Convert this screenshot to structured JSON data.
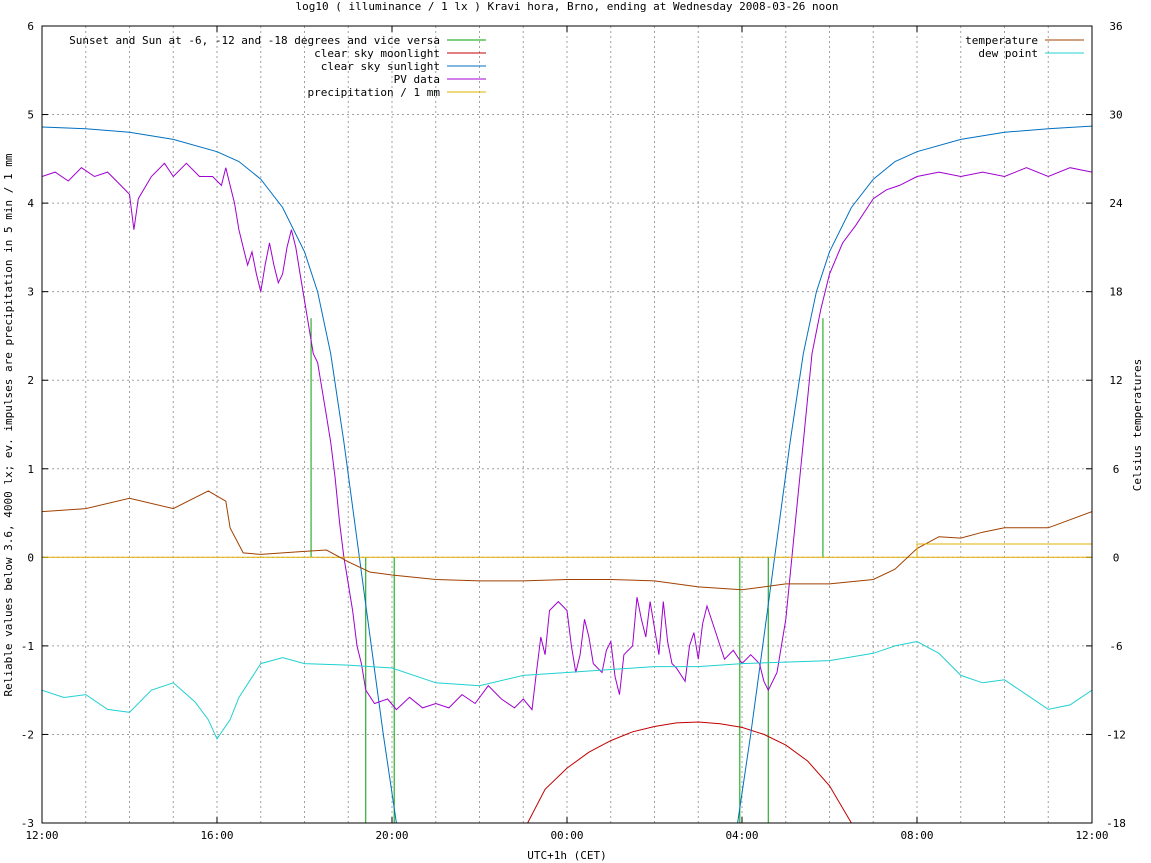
{
  "chart_data": {
    "type": "line",
    "title": "log10 ( illuminance / 1 lx ) Kravi hora, Brno, ending at Wednesday 2008-03-26 noon",
    "xlabel": "UTC+1h (CET)",
    "ylabel": "Reliable values below 3.6, 4000 lx; ev. impulses are precipitation in 5 min / 1 mm",
    "y2label": "Celsius temperatures",
    "x_unit": "hours since 12:00",
    "xlim": [
      0,
      24
    ],
    "ylim": [
      -3,
      6
    ],
    "y2lim": [
      -18,
      36
    ],
    "x_ticks": [
      {
        "v": 0,
        "label": "12:00"
      },
      {
        "v": 4,
        "label": "16:00"
      },
      {
        "v": 8,
        "label": "20:00"
      },
      {
        "v": 12,
        "label": "00:00"
      },
      {
        "v": 16,
        "label": "04:00"
      },
      {
        "v": 20,
        "label": "08:00"
      },
      {
        "v": 24,
        "label": "12:00"
      }
    ],
    "y_ticks": [
      {
        "v": -3,
        "label": "-3"
      },
      {
        "v": -2,
        "label": "-2"
      },
      {
        "v": -1,
        "label": "-1"
      },
      {
        "v": 0,
        "label": "0"
      },
      {
        "v": 1,
        "label": "1"
      },
      {
        "v": 2,
        "label": "2"
      },
      {
        "v": 3,
        "label": "3"
      },
      {
        "v": 4,
        "label": "4"
      },
      {
        "v": 5,
        "label": "5"
      },
      {
        "v": 6,
        "label": "6"
      }
    ],
    "y2_ticks": [
      {
        "v": -18,
        "label": "-18"
      },
      {
        "v": -12,
        "label": "-12"
      },
      {
        "v": -6,
        "label": "-6"
      },
      {
        "v": 0,
        "label": "0"
      },
      {
        "v": 6,
        "label": "6"
      },
      {
        "v": 12,
        "label": "12"
      },
      {
        "v": 18,
        "label": "18"
      },
      {
        "v": 24,
        "label": "24"
      },
      {
        "v": 30,
        "label": "30"
      },
      {
        "v": 36,
        "label": "36"
      }
    ],
    "grid": true,
    "legend_left_placement": "top-left",
    "legend_right_placement": "top-right",
    "series": [
      {
        "name": "Sunset and Sun at -6, -12 and -18 degrees and vice versa",
        "color": "#00a000",
        "axis": "y",
        "style": "impulses",
        "impulses": [
          {
            "x": 6.15,
            "from": 0.0,
            "to": 2.7
          },
          {
            "x": 7.4,
            "from": 0.0,
            "to": -3.0
          },
          {
            "x": 8.05,
            "from": 0.0,
            "to": -3.0
          },
          {
            "x": 15.95,
            "from": 0.0,
            "to": -3.0
          },
          {
            "x": 16.6,
            "from": 0.0,
            "to": -3.0
          },
          {
            "x": 17.85,
            "from": 0.0,
            "to": 2.7
          }
        ]
      },
      {
        "name": "clear sky moonlight",
        "color": "#c00000",
        "axis": "y",
        "points": [
          [
            11.1,
            -3.0
          ],
          [
            11.5,
            -2.62
          ],
          [
            12.0,
            -2.38
          ],
          [
            12.5,
            -2.2
          ],
          [
            13.0,
            -2.07
          ],
          [
            13.5,
            -1.97
          ],
          [
            14.0,
            -1.91
          ],
          [
            14.5,
            -1.87
          ],
          [
            15.0,
            -1.86
          ],
          [
            15.5,
            -1.88
          ],
          [
            16.0,
            -1.92
          ],
          [
            16.5,
            -2.0
          ],
          [
            17.0,
            -2.12
          ],
          [
            17.5,
            -2.3
          ],
          [
            18.0,
            -2.58
          ],
          [
            18.5,
            -3.0
          ]
        ]
      },
      {
        "name": "clear sky sunlight",
        "color": "#0070c0",
        "axis": "y",
        "points": [
          [
            0,
            4.86
          ],
          [
            1,
            4.84
          ],
          [
            2,
            4.8
          ],
          [
            3,
            4.72
          ],
          [
            4,
            4.58
          ],
          [
            4.5,
            4.47
          ],
          [
            5,
            4.27
          ],
          [
            5.5,
            3.95
          ],
          [
            6.0,
            3.45
          ],
          [
            6.3,
            3.0
          ],
          [
            6.6,
            2.3
          ],
          [
            6.9,
            1.3
          ],
          [
            7.2,
            0.2
          ],
          [
            7.5,
            -0.9
          ],
          [
            7.8,
            -2.0
          ],
          [
            8.1,
            -3.0
          ],
          [
            15.9,
            -3.0
          ],
          [
            16.2,
            -2.0
          ],
          [
            16.5,
            -0.9
          ],
          [
            16.8,
            0.2
          ],
          [
            17.1,
            1.3
          ],
          [
            17.4,
            2.3
          ],
          [
            17.7,
            3.0
          ],
          [
            18.0,
            3.45
          ],
          [
            18.5,
            3.95
          ],
          [
            19.0,
            4.27
          ],
          [
            19.5,
            4.47
          ],
          [
            20,
            4.58
          ],
          [
            21,
            4.72
          ],
          [
            22,
            4.8
          ],
          [
            23,
            4.84
          ],
          [
            24,
            4.87
          ]
        ]
      },
      {
        "name": "PV data",
        "color": "#a000d0",
        "axis": "y",
        "points": [
          [
            0,
            4.3
          ],
          [
            0.3,
            4.35
          ],
          [
            0.6,
            4.25
          ],
          [
            0.9,
            4.4
          ],
          [
            1.2,
            4.3
          ],
          [
            1.5,
            4.35
          ],
          [
            1.8,
            4.2
          ],
          [
            2.0,
            4.1
          ],
          [
            2.1,
            3.7
          ],
          [
            2.2,
            4.05
          ],
          [
            2.5,
            4.3
          ],
          [
            2.8,
            4.45
          ],
          [
            3.0,
            4.3
          ],
          [
            3.3,
            4.45
          ],
          [
            3.6,
            4.3
          ],
          [
            3.9,
            4.3
          ],
          [
            4.1,
            4.2
          ],
          [
            4.2,
            4.4
          ],
          [
            4.3,
            4.2
          ],
          [
            4.4,
            4.0
          ],
          [
            4.5,
            3.7
          ],
          [
            4.6,
            3.5
          ],
          [
            4.7,
            3.3
          ],
          [
            4.8,
            3.45
          ],
          [
            4.9,
            3.2
          ],
          [
            5.0,
            3.0
          ],
          [
            5.1,
            3.3
          ],
          [
            5.2,
            3.55
          ],
          [
            5.3,
            3.3
          ],
          [
            5.4,
            3.1
          ],
          [
            5.5,
            3.2
          ],
          [
            5.6,
            3.5
          ],
          [
            5.7,
            3.7
          ],
          [
            5.8,
            3.5
          ],
          [
            5.9,
            3.2
          ],
          [
            6.0,
            2.9
          ],
          [
            6.1,
            2.6
          ],
          [
            6.2,
            2.3
          ],
          [
            6.3,
            2.2
          ],
          [
            6.4,
            1.9
          ],
          [
            6.5,
            1.6
          ],
          [
            6.6,
            1.3
          ],
          [
            6.7,
            0.9
          ],
          [
            6.8,
            0.4
          ],
          [
            6.9,
            0.0
          ],
          [
            7.0,
            -0.3
          ],
          [
            7.1,
            -0.6
          ],
          [
            7.2,
            -1.0
          ],
          [
            7.3,
            -1.2
          ],
          [
            7.4,
            -1.5
          ],
          [
            7.6,
            -1.65
          ],
          [
            7.9,
            -1.6
          ],
          [
            8.1,
            -1.72
          ],
          [
            8.4,
            -1.58
          ],
          [
            8.7,
            -1.7
          ],
          [
            9.0,
            -1.65
          ],
          [
            9.3,
            -1.7
          ],
          [
            9.6,
            -1.55
          ],
          [
            9.9,
            -1.65
          ],
          [
            10.2,
            -1.45
          ],
          [
            10.5,
            -1.6
          ],
          [
            10.8,
            -1.7
          ],
          [
            11.0,
            -1.6
          ],
          [
            11.2,
            -1.72
          ],
          [
            11.3,
            -1.3
          ],
          [
            11.4,
            -0.9
          ],
          [
            11.5,
            -1.1
          ],
          [
            11.6,
            -0.6
          ],
          [
            11.8,
            -0.5
          ],
          [
            12.0,
            -0.6
          ],
          [
            12.1,
            -1.0
          ],
          [
            12.2,
            -1.3
          ],
          [
            12.3,
            -1.1
          ],
          [
            12.4,
            -0.7
          ],
          [
            12.5,
            -0.9
          ],
          [
            12.6,
            -1.2
          ],
          [
            12.8,
            -1.3
          ],
          [
            12.9,
            -1.05
          ],
          [
            13.0,
            -0.95
          ],
          [
            13.1,
            -1.35
          ],
          [
            13.2,
            -1.55
          ],
          [
            13.3,
            -1.1
          ],
          [
            13.5,
            -1.0
          ],
          [
            13.6,
            -0.45
          ],
          [
            13.7,
            -0.7
          ],
          [
            13.8,
            -0.9
          ],
          [
            13.9,
            -0.5
          ],
          [
            14.0,
            -0.8
          ],
          [
            14.1,
            -1.1
          ],
          [
            14.2,
            -0.5
          ],
          [
            14.3,
            -0.95
          ],
          [
            14.4,
            -1.2
          ],
          [
            14.5,
            -1.25
          ],
          [
            14.7,
            -1.4
          ],
          [
            14.8,
            -1.0
          ],
          [
            14.9,
            -0.85
          ],
          [
            15.0,
            -1.15
          ],
          [
            15.1,
            -0.75
          ],
          [
            15.2,
            -0.55
          ],
          [
            15.4,
            -0.85
          ],
          [
            15.5,
            -1.0
          ],
          [
            15.6,
            -1.15
          ],
          [
            15.8,
            -1.05
          ],
          [
            16.0,
            -1.2
          ],
          [
            16.2,
            -1.1
          ],
          [
            16.4,
            -1.2
          ],
          [
            16.5,
            -1.4
          ],
          [
            16.6,
            -1.5
          ],
          [
            16.8,
            -1.3
          ],
          [
            17.0,
            -0.7
          ],
          [
            17.2,
            0.3
          ],
          [
            17.4,
            1.3
          ],
          [
            17.6,
            2.3
          ],
          [
            17.8,
            2.8
          ],
          [
            18.0,
            3.2
          ],
          [
            18.3,
            3.55
          ],
          [
            18.6,
            3.75
          ],
          [
            18.8,
            3.9
          ],
          [
            19.0,
            4.05
          ],
          [
            19.3,
            4.15
          ],
          [
            19.6,
            4.2
          ],
          [
            20.0,
            4.3
          ],
          [
            20.5,
            4.35
          ],
          [
            21.0,
            4.3
          ],
          [
            21.5,
            4.35
          ],
          [
            22.0,
            4.3
          ],
          [
            22.5,
            4.4
          ],
          [
            23.0,
            4.3
          ],
          [
            23.5,
            4.4
          ],
          [
            24,
            4.35
          ]
        ]
      },
      {
        "name": "precipitation / 1 mm",
        "color": "#e0b000",
        "axis": "y",
        "points": [
          [
            0,
            0.0
          ],
          [
            24,
            0.0
          ]
        ]
      },
      {
        "name": "temperature",
        "color": "#a04000",
        "axis": "y2",
        "points": [
          [
            0,
            3.1
          ],
          [
            1,
            3.3
          ],
          [
            2,
            4.0
          ],
          [
            3,
            3.3
          ],
          [
            3.8,
            4.5
          ],
          [
            4.2,
            3.8
          ],
          [
            4.3,
            2.0
          ],
          [
            4.6,
            0.3
          ],
          [
            5.0,
            0.2
          ],
          [
            6.0,
            0.4
          ],
          [
            6.5,
            0.5
          ],
          [
            7.0,
            -0.3
          ],
          [
            7.5,
            -1.0
          ],
          [
            8.0,
            -1.2
          ],
          [
            9.0,
            -1.5
          ],
          [
            10.0,
            -1.6
          ],
          [
            11.0,
            -1.6
          ],
          [
            12.0,
            -1.5
          ],
          [
            13.0,
            -1.5
          ],
          [
            14.0,
            -1.6
          ],
          [
            15.0,
            -2.0
          ],
          [
            16.0,
            -2.2
          ],
          [
            17.0,
            -1.8
          ],
          [
            18.0,
            -1.8
          ],
          [
            19.0,
            -1.5
          ],
          [
            19.5,
            -0.8
          ],
          [
            20.0,
            0.6
          ],
          [
            20.5,
            1.4
          ],
          [
            21.0,
            1.3
          ],
          [
            21.5,
            1.7
          ],
          [
            22.0,
            2.0
          ],
          [
            23.0,
            2.0
          ],
          [
            24,
            3.1
          ]
        ]
      },
      {
        "name": "dew point",
        "color": "#20d0d0",
        "axis": "y2",
        "points": [
          [
            0,
            -9.0
          ],
          [
            0.5,
            -9.5
          ],
          [
            1.0,
            -9.3
          ],
          [
            1.5,
            -10.3
          ],
          [
            2.0,
            -10.5
          ],
          [
            2.5,
            -9.0
          ],
          [
            3.0,
            -8.5
          ],
          [
            3.5,
            -9.8
          ],
          [
            3.8,
            -11.0
          ],
          [
            4.0,
            -12.3
          ],
          [
            4.3,
            -11.0
          ],
          [
            4.5,
            -9.5
          ],
          [
            5.0,
            -7.2
          ],
          [
            5.5,
            -6.8
          ],
          [
            6.0,
            -7.2
          ],
          [
            7.0,
            -7.3
          ],
          [
            8.0,
            -7.5
          ],
          [
            9.0,
            -8.5
          ],
          [
            10.0,
            -8.7
          ],
          [
            11.0,
            -8.0
          ],
          [
            12.0,
            -7.8
          ],
          [
            13.0,
            -7.6
          ],
          [
            14.0,
            -7.4
          ],
          [
            15.0,
            -7.4
          ],
          [
            16.0,
            -7.2
          ],
          [
            17.0,
            -7.1
          ],
          [
            18.0,
            -7.0
          ],
          [
            19.0,
            -6.5
          ],
          [
            19.5,
            -6.0
          ],
          [
            20.0,
            -5.7
          ],
          [
            20.5,
            -6.5
          ],
          [
            21.0,
            -8.0
          ],
          [
            21.5,
            -8.5
          ],
          [
            22.0,
            -8.3
          ],
          [
            22.5,
            -9.3
          ],
          [
            23.0,
            -10.3
          ],
          [
            23.5,
            -10.0
          ],
          [
            24,
            -9.0
          ]
        ]
      },
      {
        "name": "",
        "color": "#e0b000",
        "axis": "y2",
        "points": [
          [
            20.0,
            0.0
          ],
          [
            20.0,
            0.9
          ],
          [
            24,
            0.9
          ]
        ]
      }
    ]
  }
}
